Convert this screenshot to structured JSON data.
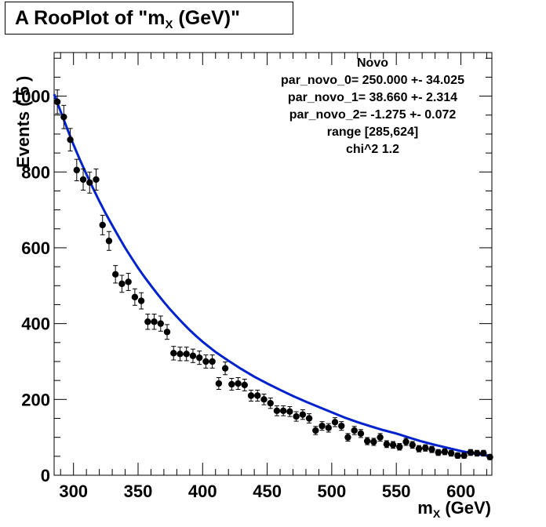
{
  "title": {
    "prefix": "A RooPlot of \"m",
    "sub": "X",
    "suffix": " (GeV)\""
  },
  "chart_data": {
    "type": "scatter",
    "xlabel": {
      "main": "m",
      "sub": "X",
      "rest": " (GeV)"
    },
    "ylabel": "Events ( 5 )",
    "xlim": [
      285,
      624
    ],
    "ylim": [
      0,
      1115
    ],
    "x_ticks": [
      300,
      350,
      400,
      450,
      500,
      550,
      600
    ],
    "y_ticks": [
      0,
      200,
      400,
      600,
      800,
      1000
    ],
    "grid": false,
    "stats_box": {
      "lines": [
        "Novo",
        "par_novo_0= 250.000 +- 34.025",
        "par_novo_1= 38.660 +- 2.314",
        "par_novo_2= -1.275 +- 0.072",
        "range [285,624]",
        "chi^2 1.2"
      ]
    },
    "series": [
      {
        "kind": "points",
        "x": [
          287.5,
          292.5,
          297.5,
          302.5,
          307.5,
          312.5,
          317.5,
          322.5,
          327.5,
          332.5,
          337.5,
          342.5,
          347.5,
          352.5,
          357.5,
          362.5,
          367.5,
          372.5,
          377.5,
          382.5,
          387.5,
          392.5,
          397.5,
          402.5,
          407.5,
          412.5,
          417.5,
          422.5,
          427.5,
          432.5,
          437.5,
          442.5,
          447.5,
          452.5,
          457.5,
          462.5,
          467.5,
          472.5,
          477.5,
          482.5,
          487.5,
          492.5,
          497.5,
          502.5,
          507.5,
          512.5,
          517.5,
          522.5,
          527.5,
          532.5,
          537.5,
          542.5,
          547.5,
          552.5,
          557.5,
          562.5,
          567.5,
          572.5,
          577.5,
          582.5,
          587.5,
          592.5,
          597.5,
          602.5,
          607.5,
          612.5,
          617.5,
          622.5
        ],
        "y": [
          985,
          945,
          885,
          805,
          780,
          772,
          780,
          660,
          618,
          530,
          505,
          510,
          470,
          460,
          405,
          405,
          400,
          378,
          322,
          320,
          320,
          315,
          310,
          300,
          300,
          242,
          282,
          240,
          242,
          238,
          210,
          210,
          200,
          190,
          170,
          170,
          168,
          155,
          160,
          150,
          118,
          130,
          125,
          140,
          130,
          100,
          118,
          110,
          90,
          88,
          100,
          82,
          80,
          75,
          88,
          80,
          70,
          72,
          68,
          60,
          62,
          58,
          52,
          52,
          60,
          58,
          58,
          48
        ]
      },
      {
        "kind": "fit",
        "name": "Novo",
        "x": [
          285,
          290,
          295,
          300,
          305,
          310,
          315,
          320,
          325,
          330,
          335,
          340,
          345,
          350,
          355,
          360,
          365,
          370,
          375,
          380,
          385,
          390,
          395,
          400,
          410,
          420,
          430,
          440,
          450,
          460,
          470,
          480,
          490,
          500,
          510,
          520,
          530,
          540,
          550,
          560,
          570,
          580,
          590,
          600,
          610,
          620,
          624
        ],
        "y": [
          1005,
          960,
          915,
          872,
          832,
          794,
          758,
          723,
          690,
          659,
          629,
          600,
          573,
          547,
          523,
          500,
          478,
          457,
          437,
          418,
          400,
          383,
          367,
          352,
          325,
          302,
          280,
          260,
          242,
          225,
          209,
          194,
          180,
          166,
          152,
          140,
          129,
          119,
          110,
          99,
          89,
          80,
          72,
          64,
          57,
          52,
          50
        ]
      }
    ]
  }
}
